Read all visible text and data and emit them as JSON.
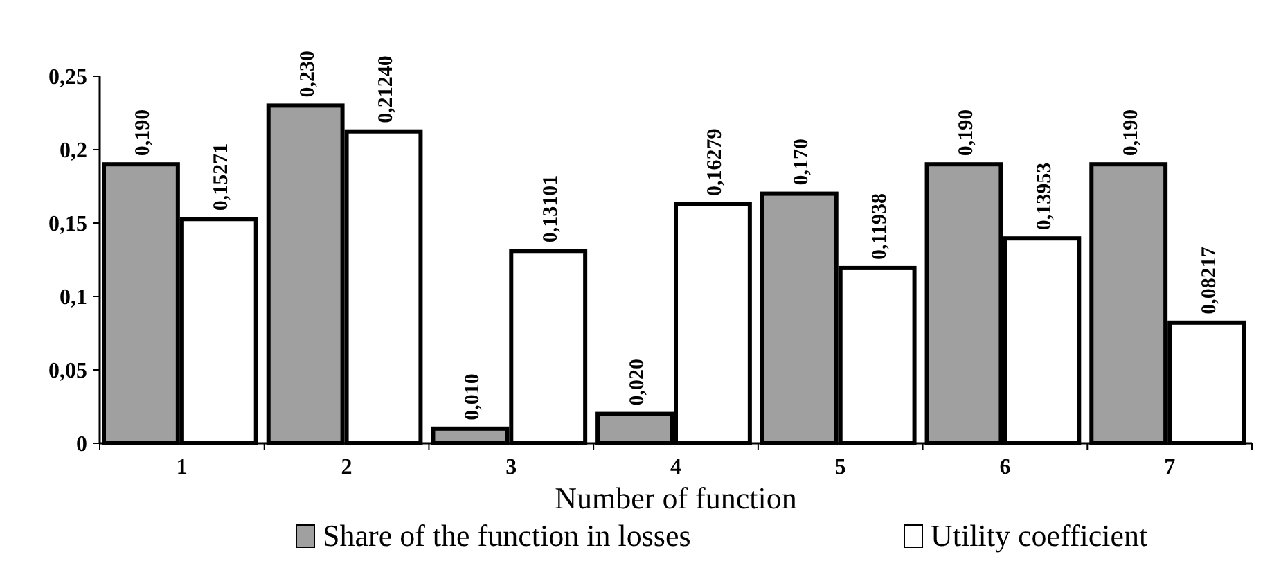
{
  "chart_data": {
    "type": "bar",
    "xlabel": "Number of function",
    "categories": [
      "1",
      "2",
      "3",
      "4",
      "5",
      "6",
      "7"
    ],
    "series": [
      {
        "name": "Share of the function in losses",
        "color": "#a0a0a0",
        "values": [
          0.19,
          0.23,
          0.01,
          0.02,
          0.17,
          0.19,
          0.19
        ],
        "value_labels": [
          "0,190",
          "0,230",
          "0,010",
          "0,020",
          "0,170",
          "0,190",
          "0,190"
        ]
      },
      {
        "name": "Utility coefficient",
        "color": "#ffffff",
        "values": [
          0.15271,
          0.2124,
          0.13101,
          0.16279,
          0.11938,
          0.13953,
          0.08217
        ],
        "value_labels": [
          "0,15271",
          "0,21240",
          "0,13101",
          "0,16279",
          "0,11938",
          "0,13953",
          "0,08217"
        ]
      }
    ],
    "ylim": [
      0,
      0.25
    ],
    "yticks": [
      {
        "value": 0,
        "label": "0"
      },
      {
        "value": 0.05,
        "label": "0,05"
      },
      {
        "value": 0.1,
        "label": "0,1"
      },
      {
        "value": 0.15,
        "label": "0,15"
      },
      {
        "value": 0.2,
        "label": "0,2"
      },
      {
        "value": 0.25,
        "label": "0,25"
      }
    ],
    "grid": false,
    "legend": "bottom"
  }
}
